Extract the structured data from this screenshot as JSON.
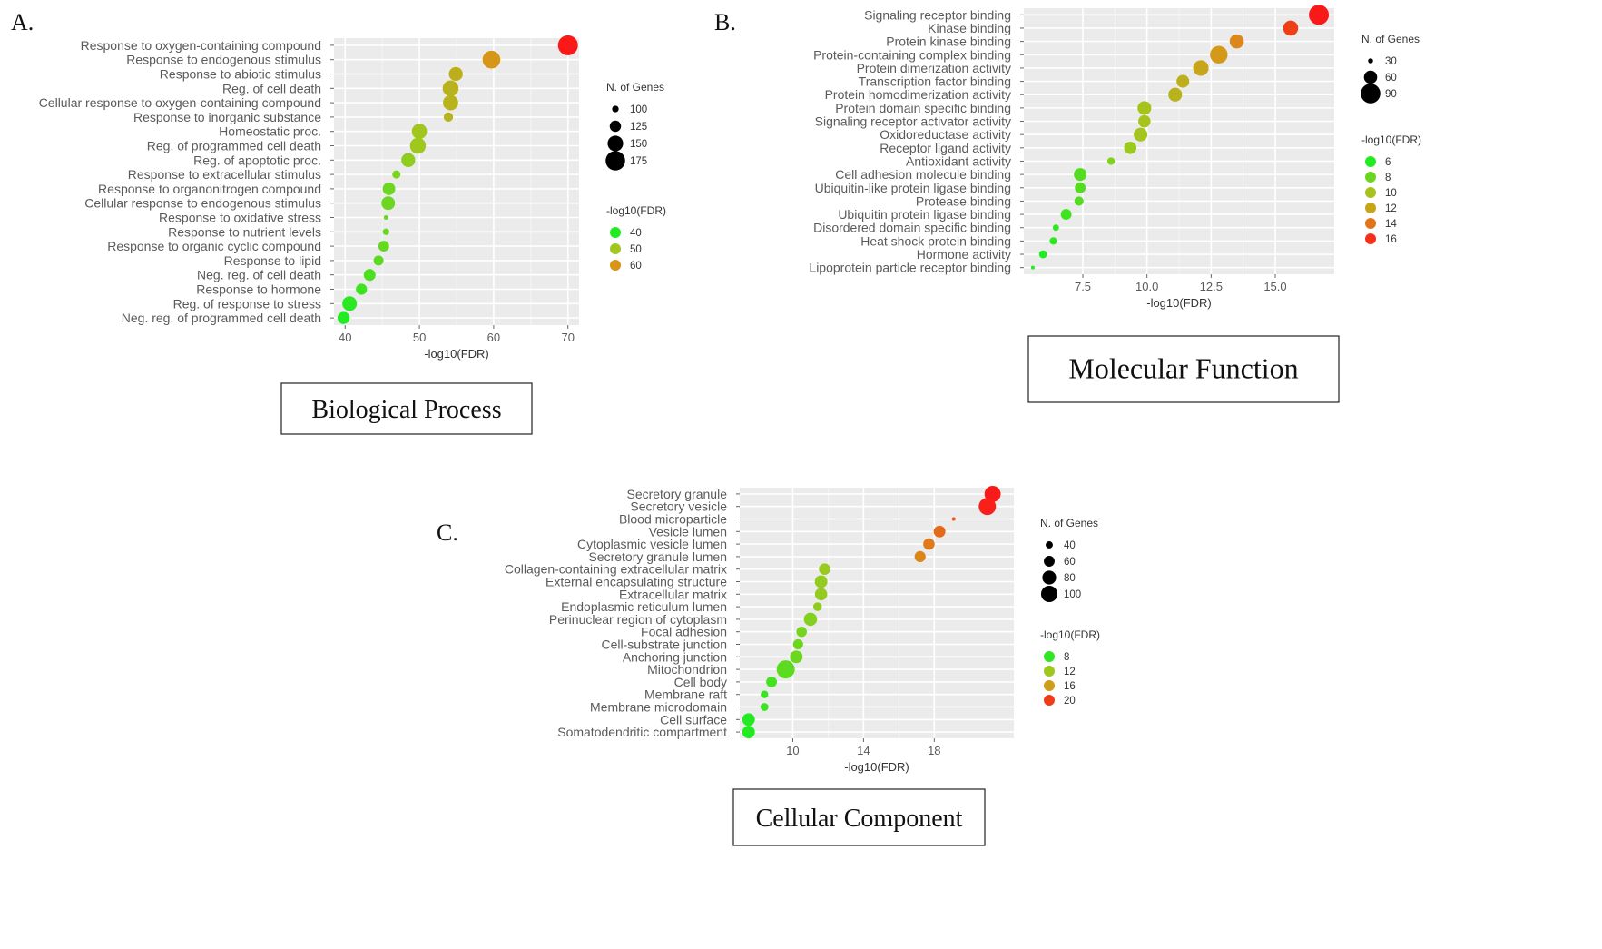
{
  "chart_data": [
    {
      "panel": "A.",
      "type": "scatter",
      "caption": "Biological Process",
      "xlabel": "-log10(FDR)",
      "xlim": [
        38.5,
        71.5
      ],
      "xticks": [
        40,
        50,
        60,
        70
      ],
      "categories": [
        "Response to oxygen-containing compound",
        "Response to endogenous stimulus",
        "Response to abiotic stimulus",
        "Reg. of cell death",
        "Cellular response to oxygen-containing compound",
        "Response to inorganic substance",
        "Homeostatic proc.",
        "Reg. of programmed cell death",
        "Reg. of apoptotic proc.",
        "Response to extracellular stimulus",
        "Response to organonitrogen compound",
        "Cellular response to endogenous stimulus",
        "Response to oxidative stress",
        "Response to nutrient levels",
        "Response to organic cyclic compound",
        "Response to lipid",
        "Neg. reg. of cell death",
        "Response to hormone",
        "Reg. of response to stress",
        "Neg. reg. of programmed cell death"
      ],
      "x": [
        70.0,
        59.7,
        54.9,
        54.2,
        54.2,
        53.9,
        50.0,
        49.8,
        48.5,
        46.9,
        45.9,
        45.8,
        45.5,
        45.5,
        45.2,
        44.5,
        43.3,
        42.2,
        40.6,
        39.8
      ],
      "genes": [
        178,
        164,
        140,
        152,
        148,
        114,
        148,
        152,
        140,
        108,
        132,
        138,
        90,
        100,
        122,
        118,
        128,
        124,
        144,
        130
      ],
      "size_legend": {
        "title": "N. of Genes",
        "values": [
          100,
          125,
          150,
          175
        ],
        "labels": [
          "100",
          "125",
          "150",
          "175"
        ]
      },
      "color_legend": {
        "title": "-log10(FDR)",
        "values": [
          40,
          50,
          60
        ],
        "labels": [
          "40",
          "50",
          "60"
        ]
      },
      "color_range": [
        40,
        70
      ]
    },
    {
      "panel": "B.",
      "type": "scatter",
      "caption": "Molecular Function",
      "xlabel": "-log10(FDR)",
      "xlim": [
        5.2,
        17.3
      ],
      "xticks": [
        7.5,
        10.0,
        12.5,
        15.0
      ],
      "xtick_labels": [
        "7.5",
        "10.0",
        "12.5",
        "15.0"
      ],
      "categories": [
        "Signaling receptor binding",
        "Kinase binding",
        "Protein kinase binding",
        "Protein-containing complex binding",
        "Protein dimerization activity",
        "Transcription factor binding",
        "Protein homodimerization activity",
        "Protein domain specific binding",
        "Signaling receptor activator activity",
        "Oxidoreductase activity",
        "Receptor ligand activity",
        "Antioxidant activity",
        "Cell adhesion molecule binding",
        "Ubiquitin-like protein ligase binding",
        "Protease binding",
        "Ubiquitin protein ligase binding",
        "Disordered domain specific binding",
        "Heat shock protein binding",
        "Hormone activity",
        "Lipoprotein particle receptor binding"
      ],
      "x": [
        16.7,
        15.6,
        13.5,
        12.8,
        12.1,
        11.4,
        11.1,
        9.9,
        9.9,
        9.75,
        9.35,
        8.6,
        7.4,
        7.4,
        7.35,
        6.85,
        6.45,
        6.35,
        5.95,
        5.55
      ],
      "genes": [
        92,
        68,
        64,
        80,
        70,
        58,
        62,
        62,
        56,
        62,
        56,
        38,
        58,
        50,
        44,
        50,
        34,
        38,
        40,
        26
      ],
      "size_legend": {
        "title": "N. of Genes",
        "values": [
          30,
          60,
          90
        ],
        "labels": [
          "30",
          "60",
          "90"
        ]
      },
      "color_legend": {
        "title": "-log10(FDR)",
        "values": [
          6,
          8,
          10,
          12,
          14,
          16
        ],
        "labels": [
          "6",
          "8",
          "10",
          "12",
          "14",
          "16"
        ]
      },
      "color_range": [
        6,
        16.7
      ]
    },
    {
      "panel": "C.",
      "type": "scatter",
      "caption": "Cellular Component",
      "xlabel": "-log10(FDR)",
      "xlim": [
        7.0,
        22.5
      ],
      "xticks": [
        10,
        14,
        18
      ],
      "categories": [
        "Secretory granule",
        "Secretory vesicle",
        "Blood microparticle",
        "Vesicle lumen",
        "Cytoplasmic vesicle lumen",
        "Secretory granule lumen",
        "Collagen-containing extracellular matrix",
        "External encapsulating structure",
        "Extracellular matrix",
        "Endoplasmic reticulum lumen",
        "Perinuclear region of cytoplasm",
        "Focal adhesion",
        "Cell-substrate junction",
        "Anchoring junction",
        "Mitochondrion",
        "Cell body",
        "Membrane raft",
        "Membrane microdomain",
        "Cell surface",
        "Somatodendritic compartment"
      ],
      "x": [
        21.3,
        21.0,
        19.1,
        18.3,
        17.7,
        17.2,
        11.8,
        11.6,
        11.6,
        11.4,
        11.0,
        10.5,
        10.3,
        10.2,
        9.6,
        8.8,
        8.4,
        8.4,
        7.5,
        7.5
      ],
      "genes": [
        98,
        106,
        24,
        66,
        64,
        62,
        64,
        72,
        70,
        48,
        76,
        58,
        56,
        72,
        114,
        60,
        42,
        44,
        72,
        72
      ],
      "size_legend": {
        "title": "N. of Genes",
        "values": [
          40,
          60,
          80,
          100
        ],
        "labels": [
          "40",
          "60",
          "80",
          "100"
        ]
      },
      "color_legend": {
        "title": "-log10(FDR)",
        "values": [
          8,
          12,
          16,
          20
        ],
        "labels": [
          "8",
          "12",
          "16",
          "20"
        ]
      },
      "color_range": [
        7.5,
        21.3
      ]
    }
  ]
}
